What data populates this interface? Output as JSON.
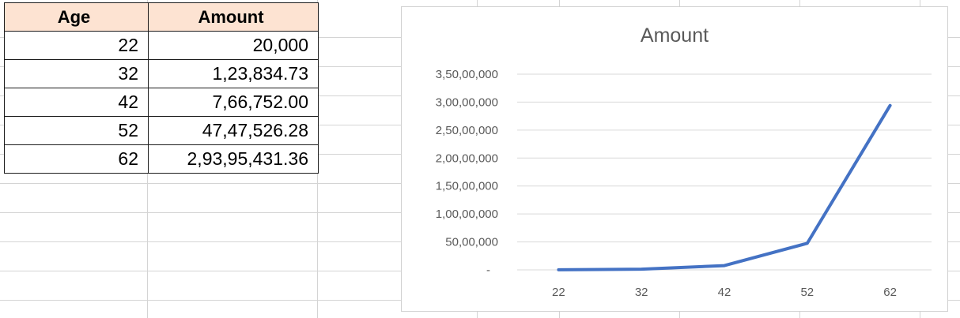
{
  "table": {
    "headers": [
      "Age",
      "Amount"
    ],
    "rows": [
      [
        "22",
        "20,000"
      ],
      [
        "32",
        "1,23,834.73"
      ],
      [
        "42",
        "7,66,752.00"
      ],
      [
        "52",
        "47,47,526.28"
      ],
      [
        "62",
        "2,93,95,431.36"
      ]
    ]
  },
  "chart_data": {
    "type": "line",
    "title": "Amount",
    "categories": [
      "22",
      "32",
      "42",
      "52",
      "62"
    ],
    "series": [
      {
        "values": [
          20000,
          123834.73,
          766752.0,
          4747526.28,
          29395431.36
        ],
        "color": "#4472c4"
      }
    ],
    "y_ticks": [
      "-",
      "50,00,000",
      "1,00,00,000",
      "1,50,00,000",
      "2,00,00,000",
      "2,50,00,000",
      "3,00,00,000",
      "3,50,00,000"
    ],
    "ylim": [
      0,
      35000000
    ],
    "grid": true,
    "legend": "none"
  }
}
